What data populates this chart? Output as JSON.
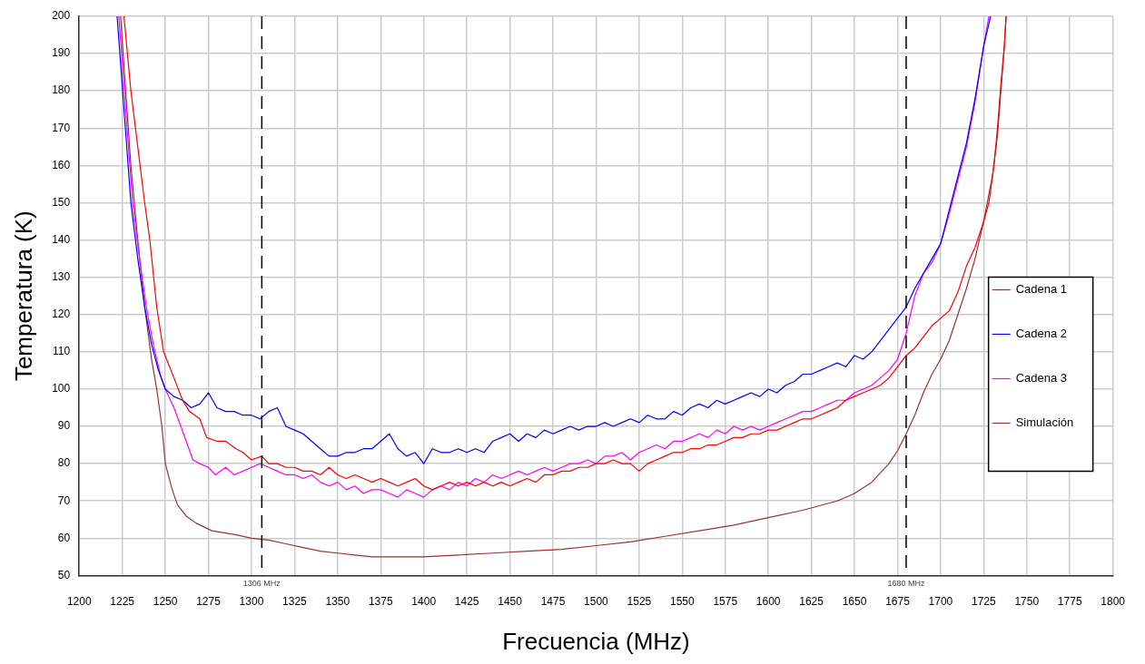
{
  "chart_data": {
    "type": "line",
    "xlabel": "Frecuencia (MHz)",
    "ylabel": "Temperatura (K)",
    "xlim": [
      1200,
      1800
    ],
    "xticks": [
      1200,
      1225,
      1250,
      1275,
      1300,
      1325,
      1350,
      1375,
      1400,
      1425,
      1450,
      1475,
      1500,
      1525,
      1550,
      1575,
      1600,
      1625,
      1650,
      1675,
      1700,
      1725,
      1750,
      1775,
      1800
    ],
    "ylim": [
      50,
      200
    ],
    "yticks": [
      50,
      60,
      70,
      80,
      90,
      100,
      110,
      120,
      130,
      140,
      150,
      160,
      170,
      180,
      190,
      200
    ],
    "grid": true,
    "legend": "right",
    "marker": "none",
    "ref_lines": [
      {
        "axis": "x",
        "value": 1306,
        "label": "1306 MHz",
        "color": "#000000",
        "line_style": "dashed"
      },
      {
        "axis": "x",
        "value": 1680,
        "label": "1680 MHz",
        "color": "#000000",
        "line_style": "dashed"
      }
    ],
    "series": [
      {
        "name": "Cadena 1",
        "color": "#ff0000",
        "x": [
          1226,
          1230,
          1234,
          1238,
          1241,
          1245,
          1249,
          1255,
          1260,
          1264,
          1270,
          1274,
          1280,
          1285,
          1291,
          1295,
          1300,
          1306,
          1310,
          1315,
          1320,
          1325,
          1330,
          1335,
          1340,
          1345,
          1350,
          1355,
          1360,
          1365,
          1370,
          1375,
          1380,
          1385,
          1390,
          1395,
          1400,
          1405,
          1410,
          1415,
          1420,
          1425,
          1430,
          1435,
          1440,
          1445,
          1450,
          1455,
          1460,
          1465,
          1470,
          1475,
          1480,
          1485,
          1490,
          1495,
          1500,
          1505,
          1510,
          1515,
          1520,
          1525,
          1530,
          1535,
          1540,
          1545,
          1550,
          1555,
          1560,
          1565,
          1570,
          1575,
          1580,
          1585,
          1590,
          1595,
          1600,
          1605,
          1610,
          1615,
          1620,
          1625,
          1630,
          1635,
          1640,
          1645,
          1650,
          1655,
          1660,
          1665,
          1670,
          1675,
          1680,
          1685,
          1690,
          1695,
          1700,
          1705,
          1710,
          1715,
          1720,
          1725,
          1728,
          1731,
          1733,
          1735,
          1737,
          1738
        ],
        "values": [
          200,
          180,
          165,
          150,
          140,
          122,
          110,
          103,
          97,
          94,
          92,
          87,
          86,
          86,
          84,
          83,
          81,
          82,
          80,
          80,
          79,
          79,
          78,
          78,
          77,
          79,
          77,
          76,
          77,
          76,
          75,
          76,
          75,
          74,
          75,
          76,
          74,
          73,
          74,
          75,
          74,
          75,
          74,
          75,
          74,
          75,
          74,
          75,
          76,
          75,
          77,
          77,
          78,
          78,
          79,
          79,
          80,
          80,
          81,
          80,
          80,
          78,
          80,
          81,
          82,
          83,
          83,
          84,
          84,
          85,
          85,
          86,
          87,
          87,
          88,
          88,
          89,
          89,
          90,
          91,
          92,
          92,
          93,
          94,
          95,
          97,
          98,
          99,
          100,
          101,
          103,
          106,
          109,
          111,
          114,
          117,
          119,
          121,
          126,
          133,
          138,
          145,
          150,
          160,
          170,
          182,
          192,
          200
        ]
      },
      {
        "name": "Cadena 2",
        "color": "#0000ff",
        "x": [
          1222,
          1226,
          1230,
          1234,
          1238,
          1242,
          1246,
          1250,
          1255,
          1260,
          1265,
          1270,
          1275,
          1280,
          1285,
          1290,
          1295,
          1300,
          1305,
          1310,
          1315,
          1320,
          1325,
          1330,
          1335,
          1340,
          1345,
          1350,
          1355,
          1360,
          1365,
          1370,
          1375,
          1380,
          1385,
          1390,
          1395,
          1400,
          1405,
          1410,
          1415,
          1420,
          1425,
          1430,
          1435,
          1440,
          1445,
          1450,
          1455,
          1460,
          1465,
          1470,
          1475,
          1480,
          1485,
          1490,
          1495,
          1500,
          1505,
          1510,
          1515,
          1520,
          1525,
          1530,
          1535,
          1540,
          1545,
          1550,
          1555,
          1560,
          1565,
          1570,
          1575,
          1580,
          1585,
          1590,
          1595,
          1600,
          1605,
          1610,
          1615,
          1620,
          1625,
          1630,
          1635,
          1640,
          1645,
          1650,
          1655,
          1660,
          1665,
          1670,
          1675,
          1680,
          1685,
          1690,
          1695,
          1700,
          1705,
          1710,
          1715,
          1720,
          1725,
          1729
        ],
        "values": [
          200,
          175,
          150,
          135,
          122,
          112,
          105,
          100,
          98,
          97,
          95,
          96,
          99,
          95,
          94,
          94,
          93,
          93,
          92,
          94,
          95,
          90,
          89,
          88,
          86,
          84,
          82,
          82,
          83,
          83,
          84,
          84,
          86,
          88,
          84,
          82,
          83,
          80,
          84,
          83,
          83,
          84,
          83,
          84,
          83,
          86,
          87,
          88,
          86,
          88,
          87,
          89,
          88,
          89,
          90,
          89,
          90,
          90,
          91,
          90,
          91,
          92,
          91,
          93,
          92,
          92,
          94,
          93,
          95,
          96,
          95,
          97,
          96,
          97,
          98,
          99,
          98,
          100,
          99,
          101,
          102,
          104,
          104,
          105,
          106,
          107,
          106,
          109,
          108,
          110,
          113,
          116,
          119,
          122,
          127,
          131,
          135,
          139,
          148,
          157,
          166,
          178,
          192,
          200
        ]
      },
      {
        "name": "Cadena 3",
        "color": "#ff00ff",
        "x": [
          1223,
          1227,
          1231,
          1235,
          1239,
          1243,
          1247,
          1250,
          1255,
          1259,
          1266,
          1270,
          1275,
          1279,
          1285,
          1290,
          1295,
          1300,
          1305,
          1310,
          1315,
          1320,
          1325,
          1330,
          1335,
          1340,
          1345,
          1350,
          1355,
          1360,
          1365,
          1370,
          1375,
          1380,
          1385,
          1390,
          1395,
          1400,
          1405,
          1410,
          1415,
          1420,
          1425,
          1430,
          1435,
          1440,
          1445,
          1450,
          1455,
          1460,
          1465,
          1470,
          1475,
          1480,
          1485,
          1490,
          1495,
          1500,
          1505,
          1510,
          1515,
          1520,
          1525,
          1530,
          1535,
          1540,
          1545,
          1550,
          1555,
          1560,
          1565,
          1570,
          1575,
          1580,
          1585,
          1590,
          1595,
          1600,
          1605,
          1610,
          1615,
          1620,
          1625,
          1630,
          1635,
          1640,
          1645,
          1650,
          1655,
          1660,
          1665,
          1670,
          1675,
          1680,
          1685,
          1690,
          1695,
          1700,
          1705,
          1710,
          1715,
          1720,
          1725,
          1728
        ],
        "values": [
          200,
          175,
          150,
          135,
          122,
          112,
          104,
          100,
          95,
          90,
          81,
          80,
          79,
          77,
          79,
          77,
          78,
          79,
          80,
          79,
          78,
          77,
          77,
          76,
          77,
          75,
          74,
          75,
          73,
          74,
          72,
          73,
          73,
          72,
          71,
          73,
          72,
          71,
          73,
          74,
          73,
          75,
          74,
          76,
          75,
          77,
          76,
          77,
          78,
          77,
          78,
          79,
          78,
          79,
          80,
          80,
          81,
          80,
          82,
          82,
          83,
          81,
          83,
          84,
          85,
          84,
          86,
          86,
          87,
          88,
          87,
          89,
          88,
          90,
          89,
          90,
          89,
          90,
          91,
          92,
          93,
          94,
          94,
          95,
          96,
          97,
          97,
          99,
          100,
          101,
          103,
          105,
          108,
          115,
          125,
          131,
          134,
          139,
          147,
          156,
          165,
          177,
          192,
          200
        ]
      },
      {
        "name": "Simulación",
        "color": "#993333",
        "x": [
          1224,
          1227,
          1230,
          1234,
          1238,
          1242,
          1245,
          1248,
          1250,
          1254,
          1257,
          1262,
          1268,
          1277,
          1290,
          1300,
          1310,
          1320,
          1330,
          1340,
          1350,
          1360,
          1370,
          1380,
          1390,
          1400,
          1420,
          1440,
          1460,
          1480,
          1500,
          1520,
          1540,
          1560,
          1580,
          1600,
          1620,
          1640,
          1650,
          1660,
          1670,
          1675,
          1680,
          1685,
          1690,
          1695,
          1700,
          1705,
          1710,
          1715,
          1720,
          1725,
          1730,
          1733,
          1735,
          1737,
          1738
        ],
        "values": [
          200,
          180,
          160,
          140,
          122,
          108,
          100,
          90,
          80,
          73,
          69,
          66,
          64,
          62,
          61,
          60,
          59.5,
          58.5,
          57.5,
          56.5,
          56,
          55.5,
          55,
          55,
          55,
          55,
          55.5,
          56,
          56.5,
          57,
          58,
          59,
          60.5,
          62,
          63.5,
          65.5,
          67.5,
          70,
          72,
          75,
          80,
          83.5,
          88,
          93,
          99,
          104,
          108,
          113,
          120,
          127,
          135,
          145,
          157,
          168,
          180,
          192,
          200
        ]
      }
    ]
  }
}
